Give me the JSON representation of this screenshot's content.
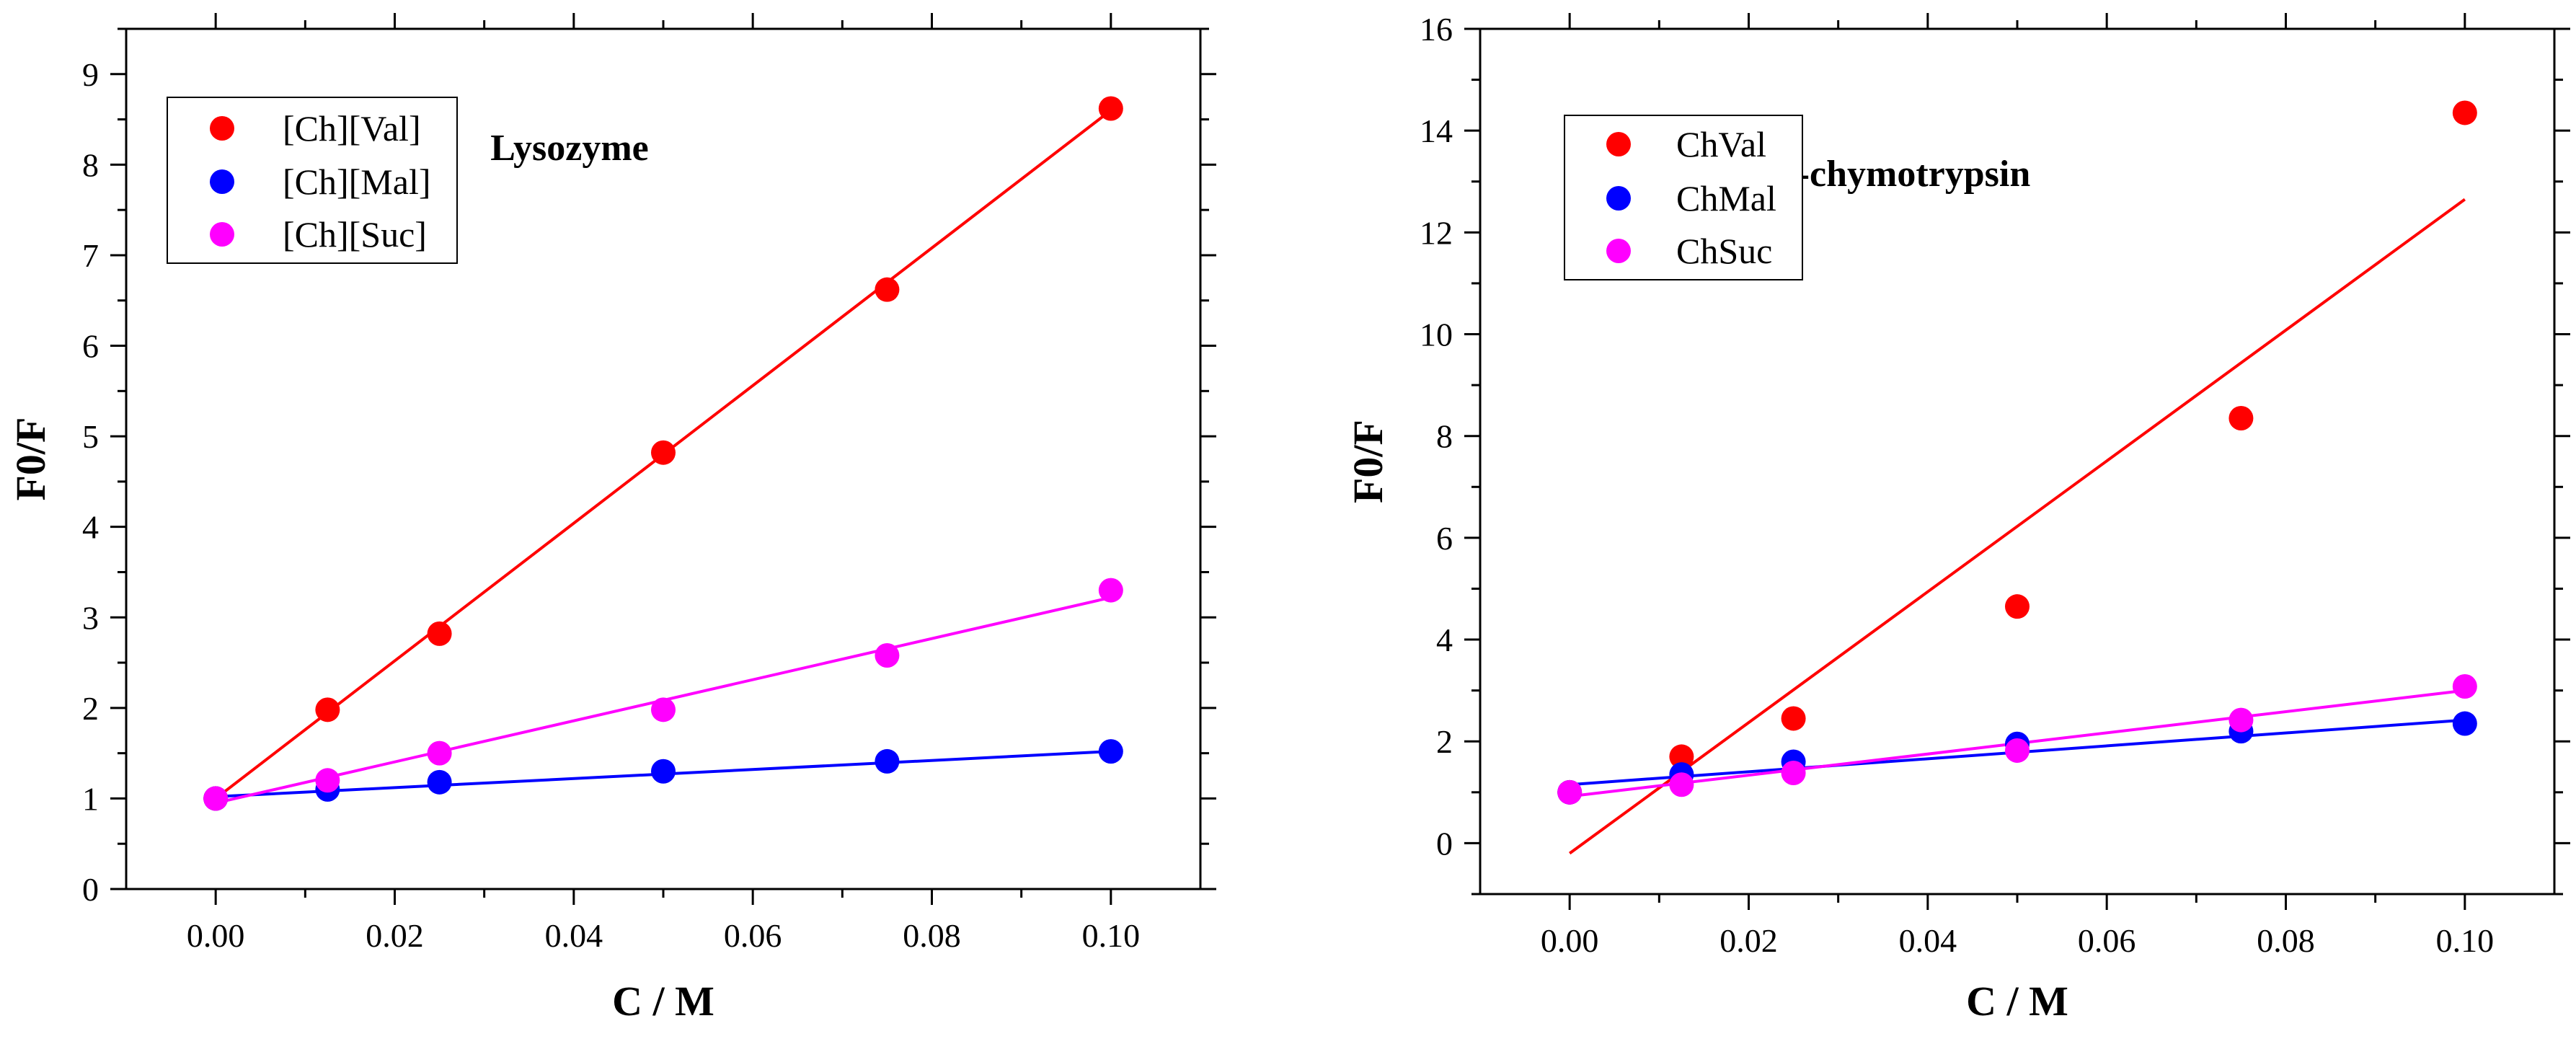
{
  "chart_data": [
    {
      "type": "scatter",
      "title": "Lysozyme",
      "xlabel": "C / M",
      "ylabel": "F0/F",
      "xlim": [
        -0.01,
        0.11
      ],
      "ylim": [
        0,
        9.5
      ],
      "xticks": [
        "0.00",
        "0.02",
        "0.04",
        "0.06",
        "0.08",
        "0.10"
      ],
      "yticks": [
        "0",
        "1",
        "2",
        "3",
        "4",
        "5",
        "6",
        "7",
        "8",
        "9"
      ],
      "legend_position": "top-left",
      "x": [
        0.0,
        0.0125,
        0.025,
        0.05,
        0.075,
        0.1
      ],
      "series": [
        {
          "name": "[Ch][Val]",
          "color": "#ff0000",
          "values": [
            1.0,
            1.98,
            2.82,
            4.82,
            6.62,
            8.62
          ],
          "fit": [
            0.0,
            1.0,
            0.1,
            8.6
          ]
        },
        {
          "name": "[Ch][Mal]",
          "color": "#0000ff",
          "values": [
            1.0,
            1.1,
            1.18,
            1.3,
            1.41,
            1.52
          ],
          "fit": [
            0.0,
            1.02,
            0.1,
            1.52
          ]
        },
        {
          "name": "[Ch][Suc]",
          "color": "#ff00ff",
          "values": [
            1.0,
            1.2,
            1.5,
            1.98,
            2.58,
            3.3
          ],
          "fit": [
            0.0,
            0.95,
            0.1,
            3.22
          ]
        }
      ]
    },
    {
      "type": "scatter",
      "title": "α-chymotrypsin",
      "xlabel": "C / M",
      "ylabel": "F0/F",
      "xlim": [
        -0.01,
        0.11
      ],
      "ylim": [
        -1,
        16
      ],
      "xticks": [
        "0.00",
        "0.02",
        "0.04",
        "0.06",
        "0.08",
        "0.10"
      ],
      "yticks": [
        "0",
        "2",
        "4",
        "6",
        "8",
        "10",
        "12",
        "14",
        "16"
      ],
      "legend_position": "top-left",
      "x": [
        0.0,
        0.0125,
        0.025,
        0.05,
        0.075,
        0.1
      ],
      "series": [
        {
          "name": "ChVal",
          "color": "#ff0000",
          "values": [
            1.0,
            1.7,
            2.45,
            4.65,
            8.35,
            14.35
          ],
          "fit": [
            0.0,
            -0.2,
            0.1,
            12.65
          ]
        },
        {
          "name": "ChMal",
          "color": "#0000ff",
          "values": [
            1.0,
            1.35,
            1.6,
            1.95,
            2.2,
            2.35
          ],
          "fit": [
            0.0,
            1.15,
            0.1,
            2.42
          ]
        },
        {
          "name": "ChSuc",
          "color": "#ff00ff",
          "values": [
            1.0,
            1.15,
            1.38,
            1.82,
            2.42,
            3.08
          ],
          "fit": [
            0.0,
            0.92,
            0.1,
            3.0
          ]
        }
      ]
    }
  ]
}
